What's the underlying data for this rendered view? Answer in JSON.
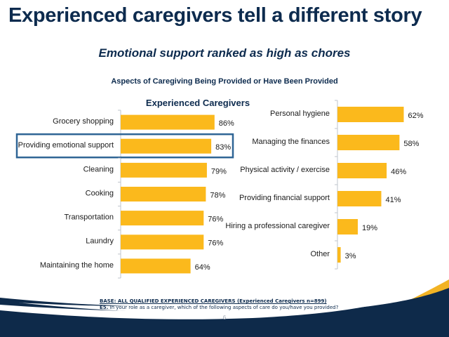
{
  "slide": {
    "title": "Experienced caregivers tell a different story",
    "subtitle": "Emotional support ranked as high as chores",
    "page_number": "6"
  },
  "chart_data": [
    {
      "type": "bar",
      "orientation": "horizontal",
      "title": "Aspects of Caregiving Being Provided or Have Been Provided",
      "panel_title": "Experienced Caregivers",
      "categories": [
        "Grocery shopping",
        "Providing emotional support",
        "Cleaning",
        "Cooking",
        "Transportation",
        "Laundry",
        "Maintaining the home"
      ],
      "values": [
        86,
        83,
        79,
        78,
        76,
        76,
        64
      ],
      "value_labels": [
        "86%",
        "83%",
        "79%",
        "78%",
        "76%",
        "76%",
        "64%"
      ],
      "highlighted_category": "Providing emotional support",
      "xlim": [
        0,
        100
      ],
      "color": "#fbb91c",
      "highlight_color": "#2f6595"
    },
    {
      "type": "bar",
      "orientation": "horizontal",
      "categories": [
        "Personal hygiene",
        "Managing the finances",
        "Physical activity / exercise",
        "Providing financial support",
        "Hiring a professional caregiver",
        "Other"
      ],
      "values": [
        62,
        58,
        46,
        41,
        19,
        3
      ],
      "value_labels": [
        "62%",
        "58%",
        "46%",
        "41%",
        "19%",
        "3%"
      ],
      "xlim": [
        0,
        100
      ],
      "color": "#fbb91c"
    }
  ],
  "footnotes": {
    "base": "BASE: ALL QUALIFIED EXPERIENCED CAREGIVERS (Experienced Caregivers n=899)",
    "question_id": "E5.",
    "question_text": " In your role as a caregiver, which of the following aspects of care do you/have you provided?"
  },
  "colors": {
    "title": "#0d2b4e",
    "axis": "#bfc5cc",
    "footer_navy": "#0e2a4a",
    "footer_gold": "#f2b324"
  }
}
